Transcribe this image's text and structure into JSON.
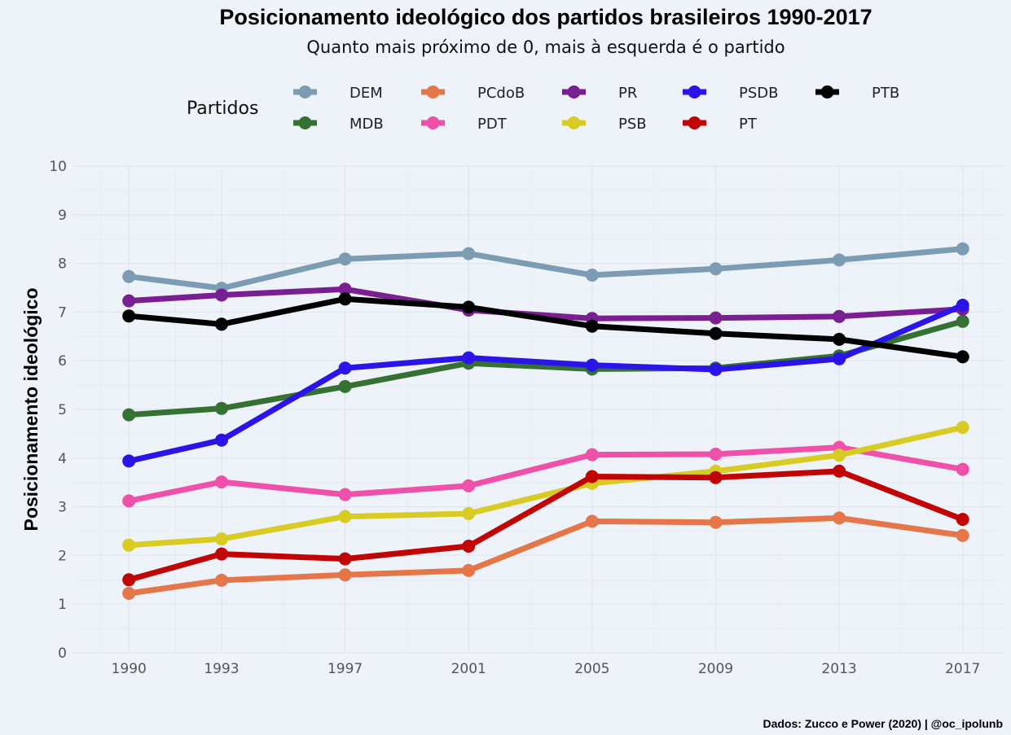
{
  "chart_data": {
    "type": "line",
    "title": "Posicionamento ideológico dos partidos brasileiros 1990-2017",
    "subtitle": "Quanto mais próximo de 0, mais à esquerda é o partido",
    "xlabel": "",
    "ylabel": "Posicionamento ideológico",
    "x": [
      1990,
      1993,
      1997,
      2001,
      2005,
      2009,
      2013,
      2017
    ],
    "x_tick_labels": [
      "1990",
      "1993",
      "1997",
      "2001",
      "2005",
      "2009",
      "2013",
      "2017"
    ],
    "xlim": [
      1988.2,
      2018.3
    ],
    "ylim": [
      0,
      10
    ],
    "y_ticks": [
      0,
      1,
      2,
      3,
      4,
      5,
      6,
      7,
      8,
      9,
      10
    ],
    "y_tick_labels": [
      "0",
      "1",
      "2",
      "3",
      "4",
      "5",
      "6",
      "7",
      "8",
      "9",
      "10"
    ],
    "grid": true,
    "legend": {
      "title": "Partidos",
      "position": "top",
      "columns": 5
    },
    "series": [
      {
        "name": "DEM",
        "color": "#7b9cb2",
        "values": [
          7.73,
          7.49,
          8.09,
          8.2,
          7.76,
          7.89,
          8.07,
          8.3
        ]
      },
      {
        "name": "MDB",
        "color": "#357132",
        "values": [
          4.89,
          5.02,
          5.47,
          5.95,
          5.83,
          5.85,
          6.1,
          6.81
        ]
      },
      {
        "name": "PCdoB",
        "color": "#e47649",
        "values": [
          1.22,
          1.49,
          1.6,
          1.69,
          2.7,
          2.68,
          2.77,
          2.41
        ]
      },
      {
        "name": "PDT",
        "color": "#ef50a9",
        "values": [
          3.12,
          3.51,
          3.25,
          3.43,
          4.07,
          4.08,
          4.22,
          3.77
        ]
      },
      {
        "name": "PR",
        "color": "#7a1f92",
        "values": [
          7.23,
          7.35,
          7.47,
          7.04,
          6.87,
          6.88,
          6.91,
          7.06
        ]
      },
      {
        "name": "PSB",
        "color": "#d8cc24",
        "values": [
          2.21,
          2.34,
          2.8,
          2.86,
          3.48,
          3.73,
          4.06,
          4.63
        ]
      },
      {
        "name": "PSDB",
        "color": "#2a14e8",
        "values": [
          3.94,
          4.37,
          5.85,
          6.06,
          5.91,
          5.82,
          6.04,
          7.14
        ]
      },
      {
        "name": "PT",
        "color": "#c10404",
        "values": [
          1.5,
          2.03,
          1.93,
          2.19,
          3.62,
          3.6,
          3.73,
          2.74
        ]
      },
      {
        "name": "PTB",
        "color": "#000000",
        "values": [
          6.92,
          6.75,
          7.27,
          7.1,
          6.71,
          6.56,
          6.44,
          6.08
        ]
      }
    ],
    "draw_order": [
      "DEM",
      "MDB",
      "PCdoB",
      "PDT",
      "PR",
      "PSB",
      "PSDB",
      "PTB",
      "PT"
    ],
    "caption": "Dados: Zucco e Power (2020) | @oc_ipolunb"
  }
}
